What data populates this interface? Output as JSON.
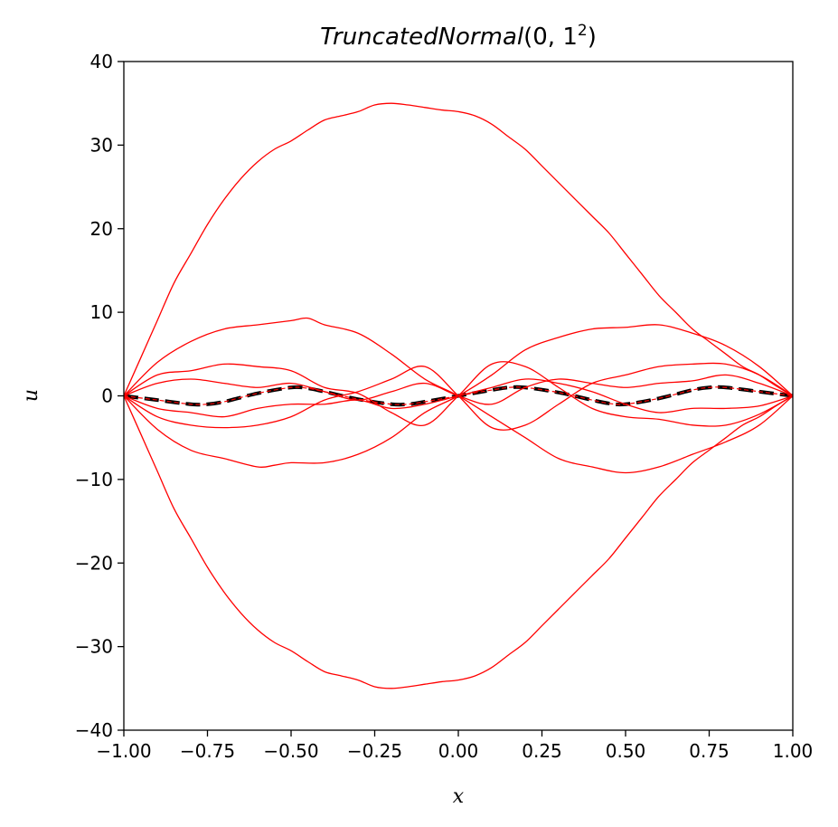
{
  "chart_data": {
    "type": "line",
    "title_name": "TruncatedNormal",
    "title_args": "(0, 1",
    "title_sup": "2",
    "title_close": ")",
    "xlabel": "x",
    "ylabel": "u",
    "xlim": [
      -1.0,
      1.0
    ],
    "ylim": [
      -40,
      40
    ],
    "x_ticks": [
      -1.0,
      -0.75,
      -0.5,
      -0.25,
      0.0,
      0.25,
      0.5,
      0.75,
      1.0
    ],
    "x_tick_labels": [
      "−1.00",
      "−0.75",
      "−0.50",
      "−0.25",
      "0.00",
      "0.25",
      "0.50",
      "0.75",
      "1.00"
    ],
    "y_ticks": [
      -40,
      -30,
      -20,
      -10,
      0,
      10,
      20,
      30,
      40
    ],
    "y_tick_labels": [
      "−40",
      "−30",
      "−20",
      "−10",
      "0",
      "10",
      "20",
      "30",
      "40"
    ],
    "grid": false,
    "reference_color": "#000000",
    "sample_color": "#ff0000",
    "reference": {
      "style": "dashed",
      "x": [
        -1.0,
        -0.9,
        -0.8,
        -0.75,
        -0.7,
        -0.6,
        -0.5,
        -0.45,
        -0.4,
        -0.3,
        -0.2,
        -0.15,
        -0.1,
        0.0,
        0.1,
        0.15,
        0.2,
        0.3,
        0.4,
        0.45,
        0.5,
        0.6,
        0.7,
        0.75,
        0.8,
        0.9,
        1.0
      ],
      "y": [
        0,
        -0.5,
        -1.0,
        -1.0,
        -0.7,
        0.3,
        1.0,
        0.9,
        0.5,
        -0.4,
        -1.0,
        -1.0,
        -0.7,
        0,
        0.7,
        1.0,
        1.0,
        0.4,
        -0.5,
        -0.9,
        -1.0,
        -0.3,
        0.7,
        1.0,
        1.0,
        0.5,
        0
      ]
    },
    "samples": [
      {
        "x": [
          -1.0,
          -0.95,
          -0.9,
          -0.85,
          -0.8,
          -0.75,
          -0.7,
          -0.65,
          -0.6,
          -0.55,
          -0.5,
          -0.45,
          -0.4,
          -0.35,
          -0.3,
          -0.25,
          -0.2,
          -0.15,
          -0.1,
          -0.05,
          0.0,
          0.05,
          0.1,
          0.15,
          0.2,
          0.25,
          0.3,
          0.35,
          0.4,
          0.45,
          0.5,
          0.55,
          0.6,
          0.65,
          0.7,
          0.75,
          0.8,
          0.85,
          0.9,
          0.95,
          1.0
        ],
        "y": [
          0,
          4.5,
          9.0,
          13.5,
          17.0,
          20.5,
          23.5,
          26.0,
          28.0,
          29.5,
          30.5,
          31.8,
          33.0,
          33.5,
          34.0,
          34.8,
          35.0,
          34.8,
          34.5,
          34.2,
          34.0,
          33.5,
          32.5,
          31.0,
          29.5,
          27.5,
          25.5,
          23.5,
          21.5,
          19.5,
          17.0,
          14.5,
          12.0,
          10.0,
          8.0,
          6.5,
          5.0,
          3.5,
          2.5,
          1.2,
          0
        ]
      },
      {
        "x": [
          -1.0,
          -0.95,
          -0.9,
          -0.85,
          -0.8,
          -0.75,
          -0.7,
          -0.65,
          -0.6,
          -0.55,
          -0.5,
          -0.45,
          -0.4,
          -0.35,
          -0.3,
          -0.25,
          -0.2,
          -0.15,
          -0.1,
          -0.05,
          0.0,
          0.05,
          0.1,
          0.15,
          0.2,
          0.25,
          0.3,
          0.35,
          0.4,
          0.45,
          0.5,
          0.55,
          0.6,
          0.65,
          0.7,
          0.75,
          0.8,
          0.85,
          0.9,
          0.95,
          1.0
        ],
        "y": [
          0,
          -4.5,
          -9.0,
          -13.5,
          -17.0,
          -20.5,
          -23.5,
          -26.0,
          -28.0,
          -29.5,
          -30.5,
          -31.8,
          -33.0,
          -33.5,
          -34.0,
          -34.8,
          -35.0,
          -34.8,
          -34.5,
          -34.2,
          -34.0,
          -33.5,
          -32.5,
          -31.0,
          -29.5,
          -27.5,
          -25.5,
          -23.5,
          -21.5,
          -19.5,
          -17.0,
          -14.5,
          -12.0,
          -10.0,
          -8.0,
          -6.5,
          -5.0,
          -3.5,
          -2.5,
          -1.2,
          0
        ]
      },
      {
        "x": [
          -1.0,
          -0.9,
          -0.8,
          -0.7,
          -0.6,
          -0.5,
          -0.45,
          -0.4,
          -0.3,
          -0.2,
          -0.1,
          0.0,
          0.1,
          0.2,
          0.3,
          0.4,
          0.5,
          0.6,
          0.7,
          0.8,
          0.9,
          1.0
        ],
        "y": [
          0,
          4.0,
          6.5,
          8.0,
          8.5,
          9.0,
          9.3,
          8.5,
          7.5,
          5.0,
          2.0,
          0,
          -2.5,
          -5.0,
          -7.5,
          -8.5,
          -9.2,
          -8.5,
          -7.0,
          -5.5,
          -3.5,
          0
        ]
      },
      {
        "x": [
          -1.0,
          -0.9,
          -0.8,
          -0.7,
          -0.6,
          -0.55,
          -0.5,
          -0.4,
          -0.3,
          -0.2,
          -0.1,
          0.0,
          0.1,
          0.2,
          0.3,
          0.4,
          0.5,
          0.6,
          0.7,
          0.8,
          0.9,
          1.0
        ],
        "y": [
          0,
          -4.0,
          -6.5,
          -7.5,
          -8.5,
          -8.3,
          -8.0,
          -8.0,
          -7.0,
          -5.0,
          -2.0,
          0,
          2.5,
          5.5,
          7.0,
          8.0,
          8.2,
          8.5,
          7.5,
          6.0,
          3.5,
          0
        ]
      },
      {
        "x": [
          -1.0,
          -0.9,
          -0.8,
          -0.7,
          -0.6,
          -0.5,
          -0.4,
          -0.3,
          -0.2,
          -0.1,
          0.0,
          0.1,
          0.2,
          0.3,
          0.4,
          0.5,
          0.6,
          0.7,
          0.8,
          0.9,
          1.0
        ],
        "y": [
          0,
          2.5,
          3.0,
          3.8,
          3.5,
          3.0,
          1.0,
          0.3,
          -2.0,
          -3.5,
          0,
          3.8,
          3.5,
          1.0,
          -1.5,
          -2.5,
          -2.8,
          -3.5,
          -3.5,
          -2.2,
          0
        ]
      },
      {
        "x": [
          -1.0,
          -0.9,
          -0.8,
          -0.7,
          -0.6,
          -0.5,
          -0.4,
          -0.3,
          -0.2,
          -0.1,
          0.0,
          0.1,
          0.2,
          0.3,
          0.4,
          0.5,
          0.6,
          0.7,
          0.8,
          0.9,
          1.0
        ],
        "y": [
          0,
          -2.5,
          -3.5,
          -3.8,
          -3.5,
          -2.5,
          -0.5,
          0.5,
          2.0,
          3.5,
          0,
          -3.8,
          -3.5,
          -1.0,
          1.5,
          2.5,
          3.5,
          3.8,
          3.8,
          2.5,
          0
        ]
      },
      {
        "x": [
          -1.0,
          -0.9,
          -0.8,
          -0.7,
          -0.6,
          -0.5,
          -0.4,
          -0.3,
          -0.2,
          -0.1,
          0.0,
          0.1,
          0.2,
          0.3,
          0.4,
          0.5,
          0.6,
          0.7,
          0.8,
          0.9,
          1.0
        ],
        "y": [
          0,
          1.5,
          2.0,
          1.5,
          1.0,
          1.5,
          0.5,
          -0.5,
          0.5,
          1.5,
          0,
          -1.0,
          1.0,
          2.0,
          1.5,
          1.0,
          1.5,
          1.8,
          2.5,
          1.5,
          0
        ]
      },
      {
        "x": [
          -1.0,
          -0.9,
          -0.8,
          -0.7,
          -0.6,
          -0.5,
          -0.4,
          -0.3,
          -0.2,
          -0.1,
          0.0,
          0.1,
          0.2,
          0.3,
          0.4,
          0.5,
          0.6,
          0.7,
          0.8,
          0.9,
          1.0
        ],
        "y": [
          0,
          -1.5,
          -2.0,
          -2.5,
          -1.5,
          -1.0,
          -1.0,
          -0.5,
          -1.5,
          -1.0,
          0,
          1.0,
          2.0,
          1.5,
          0.5,
          -1.0,
          -2.0,
          -1.5,
          -1.5,
          -1.2,
          0
        ]
      }
    ]
  }
}
